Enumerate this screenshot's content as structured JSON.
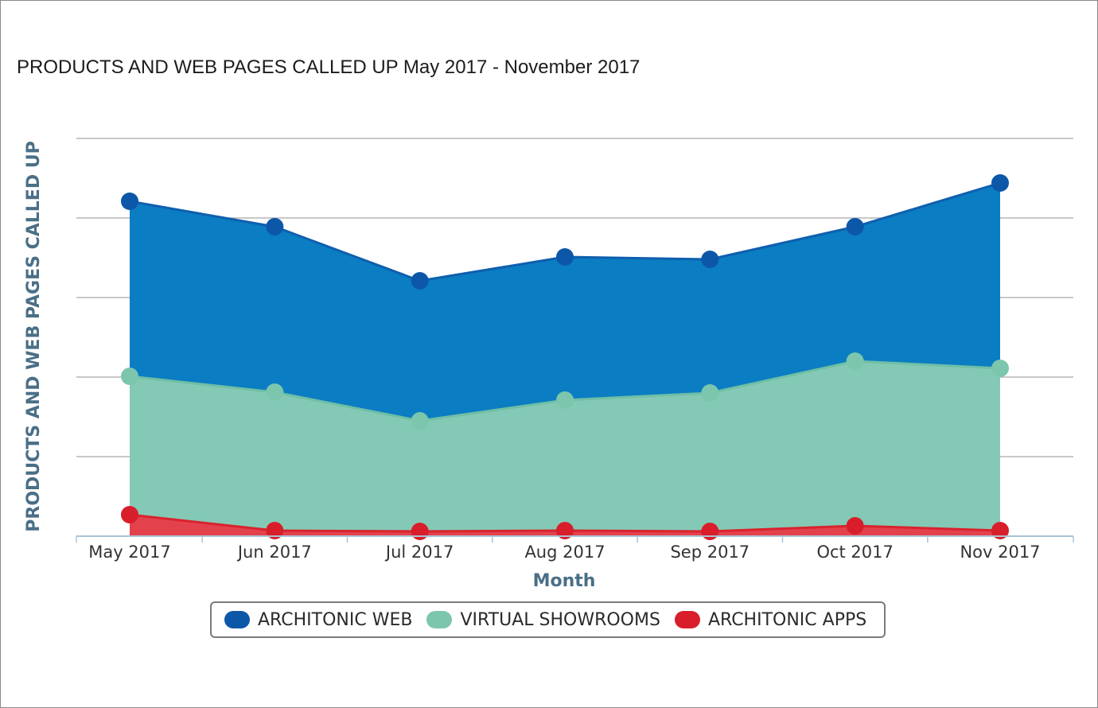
{
  "chart_title": "PRODUCTS AND WEB PAGES CALLED UP May 2017 - November 2017",
  "colors": {
    "architonic_web": "#0f5fae",
    "virtual_showrooms": "#6fbfa6",
    "architonic_apps": "#d9232e"
  },
  "chart_data": {
    "type": "area",
    "stacked": true,
    "title": "PRODUCTS AND WEB PAGES CALLED UP May 2017 - November 2017",
    "xlabel": "Month",
    "ylabel": "PRODUCTS AND WEB PAGES CALLED UP",
    "y_tick_labels_shown": false,
    "grid": true,
    "legend_position": "bottom-center",
    "categories": [
      "May 2017",
      "Jun 2017",
      "Jul 2017",
      "Aug 2017",
      "Sep 2017",
      "Oct 2017",
      "Nov 2017"
    ],
    "series": [
      {
        "name": "ARCHITONIC WEB",
        "values": [
          2.2,
          2.08,
          1.76,
          1.8,
          1.68,
          1.69,
          2.33
        ]
      },
      {
        "name": "VIRTUAL SHOWROOMS",
        "values": [
          1.74,
          1.74,
          1.39,
          1.64,
          1.74,
          2.07,
          2.04
        ]
      },
      {
        "name": "ARCHITONIC APPS",
        "values": [
          0.27,
          0.07,
          0.06,
          0.07,
          0.06,
          0.13,
          0.07
        ]
      }
    ],
    "cumulative_values_relative": {
      "ARCHITONIC APPS": [
        0.27,
        0.07,
        0.06,
        0.07,
        0.06,
        0.13,
        0.07
      ],
      "VIRTUAL SHOWROOMS": [
        2.01,
        1.81,
        1.45,
        1.71,
        1.8,
        2.2,
        2.11
      ],
      "ARCHITONIC WEB": [
        4.21,
        3.89,
        3.21,
        3.51,
        3.48,
        3.89,
        4.44
      ]
    },
    "ylim": [
      0,
      5
    ]
  }
}
